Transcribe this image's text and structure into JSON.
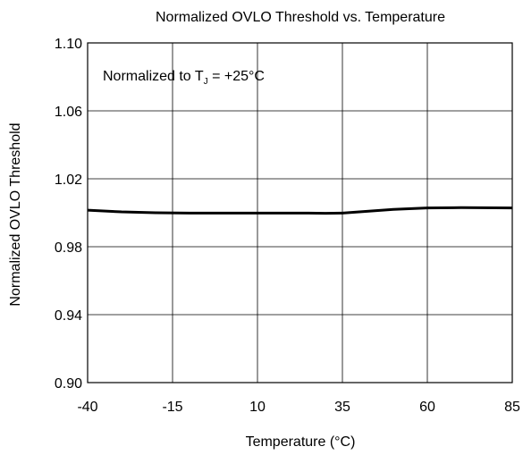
{
  "chart_data": {
    "type": "line",
    "title": "Normalized OVLO Threshold vs. Temperature",
    "xlabel": "Temperature (°C)",
    "ylabel": "Normalized OVLO Threshold",
    "xlim": [
      -40,
      85
    ],
    "ylim": [
      0.9,
      1.1
    ],
    "xticks": [
      -40,
      -15,
      10,
      35,
      60,
      85
    ],
    "yticks": [
      0.9,
      0.94,
      0.98,
      1.02,
      1.06,
      1.1
    ],
    "xtick_labels": [
      "-40",
      "-15",
      "10",
      "35",
      "60",
      "85"
    ],
    "ytick_labels": [
      "0.90",
      "0.94",
      "0.98",
      "1.02",
      "1.06",
      "1.10"
    ],
    "grid": true,
    "annotation": {
      "prefix": "Normalized to T",
      "subscript": "J",
      "suffix": " = +25°C"
    },
    "series": [
      {
        "color": "#000000",
        "x": [
          -40,
          -30,
          -20,
          -10,
          0,
          10,
          20,
          25,
          30,
          35,
          40,
          50,
          60,
          70,
          80,
          85
        ],
        "y": [
          1.0015,
          1.0005,
          1.0,
          0.9998,
          0.9998,
          0.9998,
          0.9998,
          0.9998,
          0.9997,
          0.9998,
          1.0005,
          1.002,
          1.0028,
          1.003,
          1.0029,
          1.0028
        ]
      }
    ]
  }
}
